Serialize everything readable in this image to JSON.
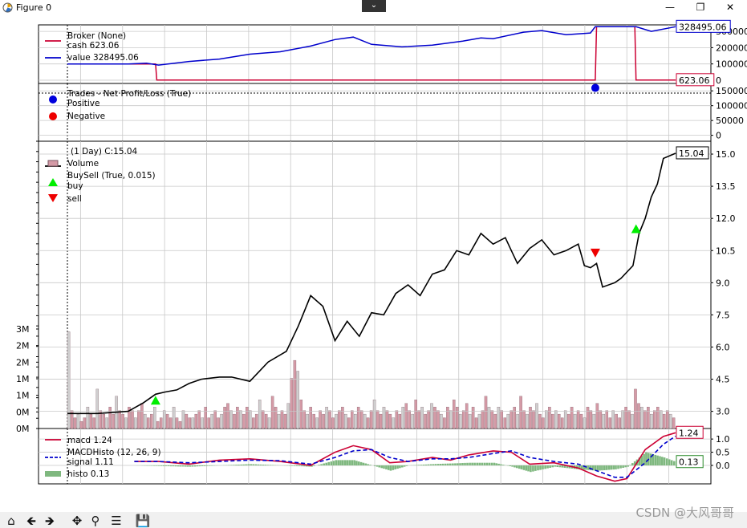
{
  "window": {
    "title": "Figure 0",
    "icon": "matplotlib-icon",
    "buttons": [
      "minimize-icon",
      "maximize-icon",
      "close-icon"
    ]
  },
  "toolbar": {
    "icons": [
      "home-icon",
      "back-arrow-icon",
      "forward-arrow-icon",
      "pan-icon",
      "zoom-icon",
      "configure-subplots-icon",
      "save-icon"
    ]
  },
  "watermark": "CSDN @大风哥哥",
  "chart_data": [
    {
      "type": "line",
      "panel": "broker",
      "legend_title": "Broker (None)",
      "series": [
        {
          "name": "cash 623.06",
          "color": "#cc0033",
          "x": [
            0.0,
            0.145,
            0.147,
            0.868,
            0.87,
            0.933,
            0.935,
            1.0
          ],
          "values": [
            100000,
            100000,
            623.06,
            623.06,
            328495,
            328495,
            623.06,
            623.06
          ]
        },
        {
          "name": "value 328495.06",
          "color": "#0000cc",
          "x": [
            0.0,
            0.1,
            0.13,
            0.15,
            0.2,
            0.25,
            0.3,
            0.35,
            0.4,
            0.44,
            0.47,
            0.5,
            0.55,
            0.6,
            0.65,
            0.68,
            0.7,
            0.75,
            0.78,
            0.82,
            0.86,
            0.868,
            0.935,
            0.96,
            1.0
          ],
          "values": [
            100000,
            100000,
            105000,
            93000,
            115000,
            130000,
            160000,
            175000,
            210000,
            250000,
            265000,
            220000,
            205000,
            215000,
            240000,
            260000,
            255000,
            295000,
            305000,
            280000,
            290000,
            328495,
            328495,
            300000,
            328495
          ]
        }
      ],
      "last_values": [
        "328495.06",
        "623.06"
      ],
      "yticks": [
        "300000",
        "200000",
        "100000",
        "0"
      ],
      "ylim": [
        -20000,
        340000
      ]
    },
    {
      "type": "scatter",
      "panel": "trades",
      "legend_title": "Trades - Net Profit/Loss (True)",
      "series": [
        {
          "name": "Positive",
          "color": "#0000dd",
          "x": [
            0.868
          ],
          "values": [
            160000
          ]
        },
        {
          "name": "Negative",
          "color": "#ee0000",
          "x": [],
          "values": []
        }
      ],
      "yticks": [
        "150000",
        "100000",
        "50000",
        "0"
      ],
      "ylim": [
        -20000,
        175000
      ]
    },
    {
      "type": "line",
      "panel": "price",
      "series": [
        {
          "name": "(1 Day) C:15.04",
          "color": "#000000",
          "x": [
            0.0,
            0.05,
            0.1,
            0.125,
            0.145,
            0.16,
            0.18,
            0.2,
            0.22,
            0.25,
            0.27,
            0.3,
            0.33,
            0.36,
            0.38,
            0.4,
            0.42,
            0.44,
            0.46,
            0.48,
            0.5,
            0.52,
            0.54,
            0.56,
            0.58,
            0.6,
            0.62,
            0.64,
            0.66,
            0.68,
            0.7,
            0.72,
            0.73,
            0.74,
            0.76,
            0.78,
            0.8,
            0.82,
            0.84,
            0.85,
            0.86,
            0.87,
            0.88,
            0.9,
            0.91,
            0.93,
            0.94,
            0.95,
            0.96,
            0.97,
            0.98,
            1.0
          ],
          "values": [
            2.9,
            2.9,
            3.0,
            3.4,
            3.8,
            3.9,
            4.0,
            4.3,
            4.5,
            4.6,
            4.6,
            4.4,
            5.3,
            5.8,
            7.0,
            8.4,
            7.9,
            6.3,
            7.2,
            6.5,
            7.6,
            7.5,
            8.5,
            8.9,
            8.4,
            9.4,
            9.6,
            10.5,
            10.3,
            11.3,
            10.8,
            11.1,
            10.5,
            9.9,
            10.6,
            11.0,
            10.3,
            10.5,
            10.8,
            9.8,
            9.7,
            9.9,
            8.8,
            9.0,
            9.2,
            9.8,
            11.3,
            12.0,
            13.0,
            13.6,
            14.8,
            15.04
          ]
        }
      ],
      "last_value": "15.04",
      "yticks": [
        "15.0",
        "13.5",
        "12.0",
        "10.5",
        "9.0",
        "7.5",
        "6.0",
        "4.5",
        "3.0"
      ],
      "ylim": [
        2.2,
        15.6
      ]
    },
    {
      "type": "bar",
      "panel": "volume",
      "series": [
        {
          "name": "Volume",
          "color": "#d49aa6"
        }
      ],
      "values": [
        2.7,
        0.5,
        0.3,
        0.4,
        0.2,
        0.3,
        0.6,
        0.4,
        0.3,
        1.1,
        0.5,
        0.4,
        0.3,
        0.6,
        0.4,
        0.9,
        0.5,
        0.4,
        0.3,
        0.6,
        0.5,
        0.3,
        0.5,
        0.7,
        0.4,
        0.3,
        0.4,
        0.6,
        0.2,
        0.3,
        0.5,
        0.4,
        0.3,
        0.6,
        0.3,
        0.2,
        0.5,
        0.4,
        0.3,
        0.3,
        0.4,
        0.5,
        0.3,
        0.6,
        0.3,
        0.4,
        0.5,
        0.3,
        0.4,
        0.6,
        0.7,
        0.5,
        0.4,
        0.6,
        0.5,
        0.4,
        0.6,
        0.5,
        0.3,
        0.4,
        0.8,
        0.5,
        0.4,
        0.3,
        0.9,
        0.6,
        0.4,
        0.5,
        0.4,
        0.7,
        1.4,
        1.9,
        1.6,
        0.8,
        0.5,
        0.4,
        0.6,
        0.4,
        0.3,
        0.5,
        0.4,
        0.6,
        0.5,
        0.3,
        0.4,
        0.5,
        0.6,
        0.4,
        0.3,
        0.5,
        0.4,
        0.6,
        0.5,
        0.4,
        0.3,
        0.5,
        0.8,
        0.5,
        0.4,
        0.6,
        0.5,
        0.4,
        0.3,
        0.5,
        0.4,
        0.6,
        0.7,
        0.5,
        0.4,
        0.8,
        0.5,
        0.6,
        0.4,
        0.5,
        0.7,
        0.6,
        0.5,
        0.4,
        0.3,
        0.6,
        0.5,
        0.8,
        0.6,
        0.4,
        0.5,
        0.7,
        0.4,
        0.6,
        0.3,
        0.4,
        0.5,
        0.9,
        0.6,
        0.5,
        0.4,
        0.6,
        0.5,
        0.3,
        0.4,
        0.5,
        0.6,
        0.4,
        0.9,
        0.5,
        0.4,
        0.6,
        0.5,
        0.7,
        0.4,
        0.3,
        0.5,
        0.6,
        0.4,
        0.5,
        0.4,
        0.3,
        0.5,
        0.4,
        0.6,
        0.4,
        0.5,
        0.4,
        0.3,
        0.6,
        0.5,
        0.4,
        0.7,
        0.5,
        0.4,
        0.5,
        0.3,
        0.5,
        0.4,
        0.3,
        0.5,
        0.6,
        0.5,
        0.4,
        1.1,
        0.7,
        0.6,
        0.5,
        0.6,
        0.4,
        0.5,
        0.6,
        0.5,
        0.4,
        0.5,
        0.4,
        0.3
      ],
      "yticks": [
        "3M",
        "2M",
        "2M",
        "1M",
        "1M",
        "0M",
        "0M"
      ],
      "ylim": [
        0,
        3.0
      ]
    },
    {
      "type": "scatter",
      "panel": "buysell",
      "legend_title": "BuySell (True, 0.015)",
      "series": [
        {
          "name": "buy",
          "color": "#00ee00",
          "marker": "triangle-up",
          "x": [
            0.145,
            0.935
          ],
          "values": [
            3.5,
            11.5
          ]
        },
        {
          "name": "sell",
          "color": "#ee0000",
          "marker": "triangle-down",
          "x": [
            0.868
          ],
          "values": [
            10.4
          ]
        }
      ]
    },
    {
      "type": "line",
      "panel": "macd",
      "legend_title": "MACDHisto (12, 26, 9)",
      "series": [
        {
          "name": "macd 1.24",
          "color": "#cc0033",
          "x": [
            0.11,
            0.15,
            0.2,
            0.25,
            0.3,
            0.35,
            0.4,
            0.44,
            0.47,
            0.5,
            0.53,
            0.56,
            0.6,
            0.63,
            0.66,
            0.7,
            0.73,
            0.76,
            0.8,
            0.84,
            0.87,
            0.9,
            0.92,
            0.95,
            0.98,
            1.0
          ],
          "values": [
            0.15,
            0.15,
            0.05,
            0.2,
            0.25,
            0.15,
            0.0,
            0.5,
            0.75,
            0.6,
            0.1,
            0.15,
            0.3,
            0.2,
            0.4,
            0.55,
            0.5,
            0.05,
            0.1,
            -0.1,
            -0.4,
            -0.6,
            -0.5,
            0.6,
            1.1,
            1.24
          ]
        },
        {
          "name": "signal 1.11",
          "color": "#0000cc",
          "dashed": true,
          "x": [
            0.11,
            0.15,
            0.2,
            0.25,
            0.3,
            0.35,
            0.4,
            0.44,
            0.47,
            0.5,
            0.53,
            0.56,
            0.6,
            0.63,
            0.66,
            0.7,
            0.73,
            0.76,
            0.8,
            0.84,
            0.87,
            0.9,
            0.92,
            0.95,
            0.98,
            1.0
          ],
          "values": [
            0.15,
            0.15,
            0.1,
            0.15,
            0.2,
            0.18,
            0.05,
            0.3,
            0.55,
            0.6,
            0.3,
            0.15,
            0.25,
            0.25,
            0.3,
            0.45,
            0.55,
            0.3,
            0.15,
            0.05,
            -0.2,
            -0.45,
            -0.45,
            0.1,
            0.8,
            1.11
          ]
        },
        {
          "name": "histo 0.13",
          "color": "#7fb87f",
          "kind": "histogram",
          "x": [
            0.11,
            0.2,
            0.3,
            0.4,
            0.44,
            0.47,
            0.5,
            0.53,
            0.56,
            0.6,
            0.66,
            0.7,
            0.73,
            0.76,
            0.8,
            0.84,
            0.87,
            0.9,
            0.92,
            0.95,
            0.98,
            1.0
          ],
          "values": [
            0.0,
            -0.05,
            0.05,
            -0.05,
            0.2,
            0.2,
            0.0,
            -0.2,
            0.0,
            0.05,
            0.1,
            0.1,
            -0.05,
            -0.25,
            -0.05,
            -0.15,
            -0.2,
            -0.15,
            -0.05,
            0.5,
            0.3,
            0.13
          ]
        }
      ],
      "last_values": [
        "1.24",
        "0.13"
      ],
      "yticks": [
        "1.0",
        "0.5",
        "0.0"
      ],
      "ylim": [
        -0.7,
        1.4
      ]
    }
  ]
}
